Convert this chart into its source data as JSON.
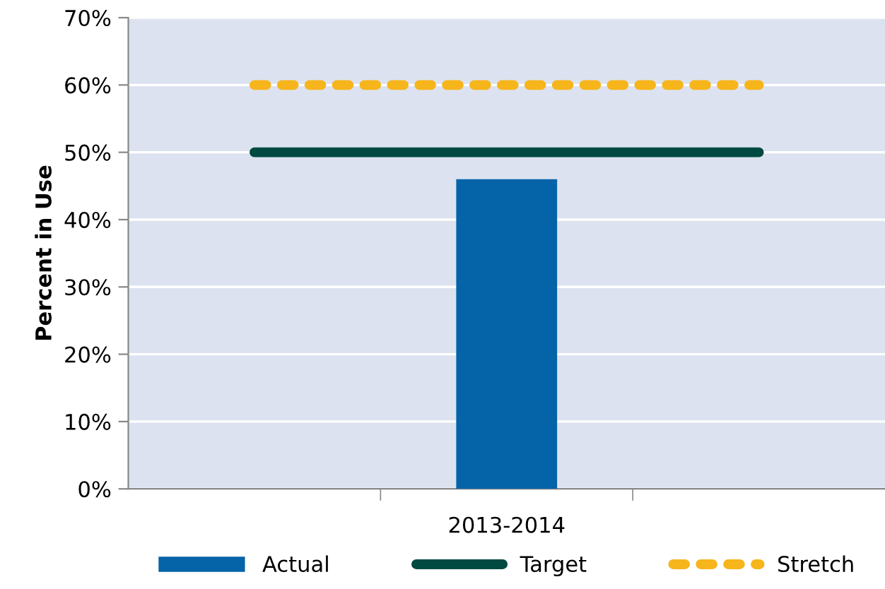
{
  "chart_data": {
    "type": "bar",
    "ylabel": "Percent in Use",
    "categories": [
      null,
      "2013-2014",
      null
    ],
    "series": [
      {
        "name": "Actual",
        "color": "#0563a8",
        "values": [
          null,
          46,
          null
        ]
      },
      {
        "name": "Target",
        "type": "line",
        "color": "#004a41",
        "values": [
          50,
          50,
          50
        ],
        "line_style": "solid"
      },
      {
        "name": "Stretch",
        "type": "line",
        "color": "#f7b51c",
        "values": [
          60,
          60,
          60
        ],
        "line_style": "dashed"
      }
    ],
    "ylim": [
      0,
      70
    ],
    "yticks": [
      {
        "value": 0,
        "label": "0%"
      },
      {
        "value": 10,
        "label": "10%"
      },
      {
        "value": 20,
        "label": "20%"
      },
      {
        "value": 30,
        "label": "30%"
      },
      {
        "value": 40,
        "label": "40%"
      },
      {
        "value": 50,
        "label": "50%"
      },
      {
        "value": 60,
        "label": "60%"
      },
      {
        "value": 70,
        "label": "70%"
      }
    ],
    "grid": "y",
    "legend": "bottom",
    "marker": "none"
  }
}
